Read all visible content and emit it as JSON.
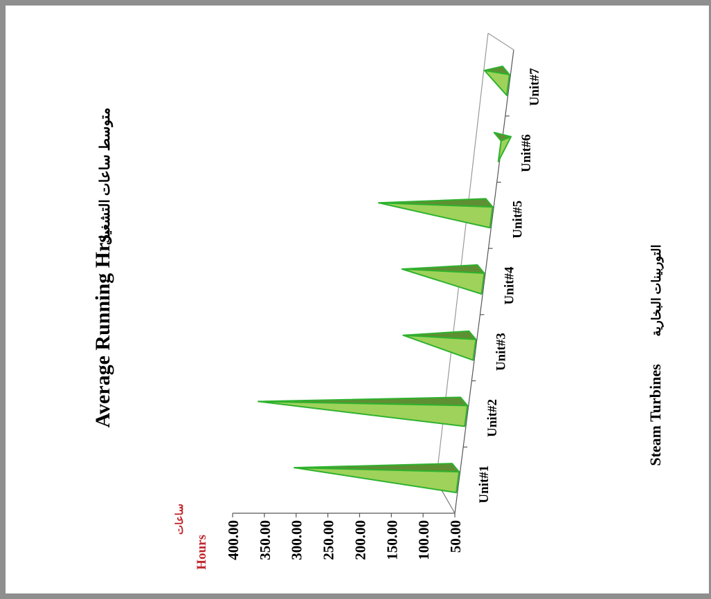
{
  "chart_data": {
    "type": "bar",
    "shape": "3d-cone",
    "title": "Average Running Hrs.",
    "title_ar": "متوسط ساعات التشغيل",
    "x_title_en": "Steam Turbines",
    "x_title_ar": "التوربينات البخارية",
    "y_unit_ar": "ساعات",
    "y_unit_en": "Hours",
    "categories": [
      "Unit#1",
      "Unit#2",
      "Unit#3",
      "Unit#4",
      "Unit#5",
      "Unit#6",
      "Unit#7"
    ],
    "values": [
      305,
      375,
      160,
      175,
      225,
      30,
      85
    ],
    "yticks": [
      "50.00",
      "100.00",
      "150.00",
      "200.00",
      "250.00",
      "300.00",
      "350.00",
      "400.00"
    ],
    "ylim": [
      50,
      400
    ],
    "colors": {
      "cone_fill": "#9fd25a",
      "cone_dark": "#5f8f33",
      "cone_edge": "#2eb22e",
      "unit_text": "#c0272d"
    }
  }
}
